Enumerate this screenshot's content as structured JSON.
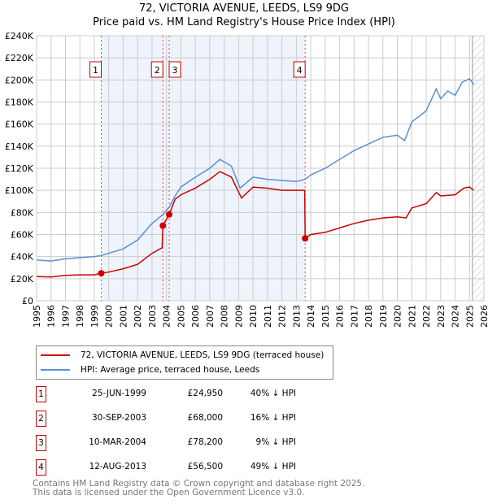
{
  "chart_data": {
    "type": "line",
    "title": "72, VICTORIA AVENUE, LEEDS, LS9 9DG",
    "subtitle": "Price paid vs. HM Land Registry's House Price Index (HPI)",
    "xlim": [
      1995,
      2026
    ],
    "ylim": [
      0,
      240000
    ],
    "x_ticks": [
      "1995",
      "1996",
      "1997",
      "1998",
      "1999",
      "2000",
      "2001",
      "2002",
      "2003",
      "2004",
      "2005",
      "2006",
      "2007",
      "2008",
      "2009",
      "2010",
      "2011",
      "2012",
      "2013",
      "2014",
      "2015",
      "2016",
      "2017",
      "2018",
      "2019",
      "2020",
      "2021",
      "2022",
      "2023",
      "2024",
      "2025",
      "2026"
    ],
    "y_ticks": [
      {
        "v": 0,
        "l": "£0"
      },
      {
        "v": 20000,
        "l": "£20K"
      },
      {
        "v": 40000,
        "l": "£40K"
      },
      {
        "v": 60000,
        "l": "£60K"
      },
      {
        "v": 80000,
        "l": "£80K"
      },
      {
        "v": 100000,
        "l": "£100K"
      },
      {
        "v": 120000,
        "l": "£120K"
      },
      {
        "v": 140000,
        "l": "£140K"
      },
      {
        "v": 160000,
        "l": "£160K"
      },
      {
        "v": 180000,
        "l": "£180K"
      },
      {
        "v": 200000,
        "l": "£200K"
      },
      {
        "v": 220000,
        "l": "£220K"
      },
      {
        "v": 240000,
        "l": "£240K"
      }
    ],
    "grid": true,
    "shaded_range": [
      1999.48,
      2013.61
    ],
    "hatched_from": 2025.2,
    "series": [
      {
        "name": "72, VICTORIA AVENUE, LEEDS, LS9 9DG (terraced house)",
        "color": "#cc0000",
        "x": [
          1995,
          1996,
          1997,
          1998,
          1999,
          1999.48,
          2000,
          2001,
          2002,
          2003,
          2003.7,
          2003.75,
          2004.19,
          2004.6,
          2005,
          2006,
          2007,
          2007.7,
          2008.5,
          2009.2,
          2010,
          2011,
          2012,
          2013,
          2013.58,
          2013.61,
          2014,
          2015,
          2016,
          2017,
          2018,
          2019,
          2020,
          2020.6,
          2021,
          2022,
          2022.7,
          2023,
          2024,
          2024.6,
          2025,
          2025.3
        ],
        "y": [
          22000,
          21500,
          23000,
          23500,
          23500,
          24950,
          26000,
          29000,
          33000,
          43000,
          48000,
          68000,
          78200,
          92000,
          96000,
          102000,
          110000,
          117000,
          112000,
          93000,
          103000,
          102000,
          100000,
          100000,
          100000,
          56500,
          60000,
          62000,
          66000,
          70000,
          73000,
          75000,
          76000,
          75000,
          84000,
          88000,
          98000,
          95000,
          96000,
          102000,
          103000,
          100000
        ]
      },
      {
        "name": "HPI: Average price, terraced house, Leeds",
        "color": "#5b8fd6",
        "x": [
          1995,
          1996,
          1997,
          1998,
          1999,
          1999.48,
          2000,
          2001,
          2002,
          2003,
          2003.75,
          2004.2,
          2004.6,
          2005,
          2006,
          2007,
          2007.7,
          2008.5,
          2009.1,
          2010,
          2011,
          2012,
          2013,
          2013.61,
          2014,
          2015,
          2016,
          2017,
          2018,
          2019,
          2020,
          2020.5,
          2021,
          2022,
          2022.7,
          2023,
          2023.5,
          2024,
          2024.5,
          2025,
          2025.3
        ],
        "y": [
          37000,
          36000,
          38000,
          39000,
          40000,
          41000,
          43000,
          47000,
          55000,
          70000,
          78000,
          85000,
          95000,
          103000,
          112000,
          120000,
          128000,
          122000,
          102000,
          112000,
          110000,
          109000,
          108000,
          110000,
          114000,
          120000,
          128000,
          136000,
          142000,
          148000,
          150000,
          145000,
          162000,
          172000,
          192000,
          183000,
          190000,
          186000,
          198000,
          201000,
          196000
        ]
      }
    ],
    "markers": [
      {
        "label": "1",
        "x": 1999.48,
        "y": 24950
      },
      {
        "label": "2",
        "x": 2003.75,
        "y": 68000
      },
      {
        "label": "3",
        "x": 2004.19,
        "y": 78200
      },
      {
        "label": "4",
        "x": 2013.61,
        "y": 56500
      }
    ]
  },
  "legend": {
    "items": [
      "72, VICTORIA AVENUE, LEEDS, LS9 9DG (terraced house)",
      "HPI: Average price, terraced house, Leeds"
    ]
  },
  "transactions": [
    {
      "num": "1",
      "date": "25-JUN-1999",
      "price": "£24,950",
      "hpi": "40% ↓ HPI"
    },
    {
      "num": "2",
      "date": "30-SEP-2003",
      "price": "£68,000",
      "hpi": "16% ↓ HPI"
    },
    {
      "num": "3",
      "date": "10-MAR-2004",
      "price": "£78,200",
      "hpi": "9% ↓ HPI"
    },
    {
      "num": "4",
      "date": "12-AUG-2013",
      "price": "£56,500",
      "hpi": "49% ↓ HPI"
    }
  ],
  "footer": {
    "line1": "Contains HM Land Registry data © Crown copyright and database right 2025.",
    "line2": "This data is licensed under the Open Government Licence v3.0."
  }
}
